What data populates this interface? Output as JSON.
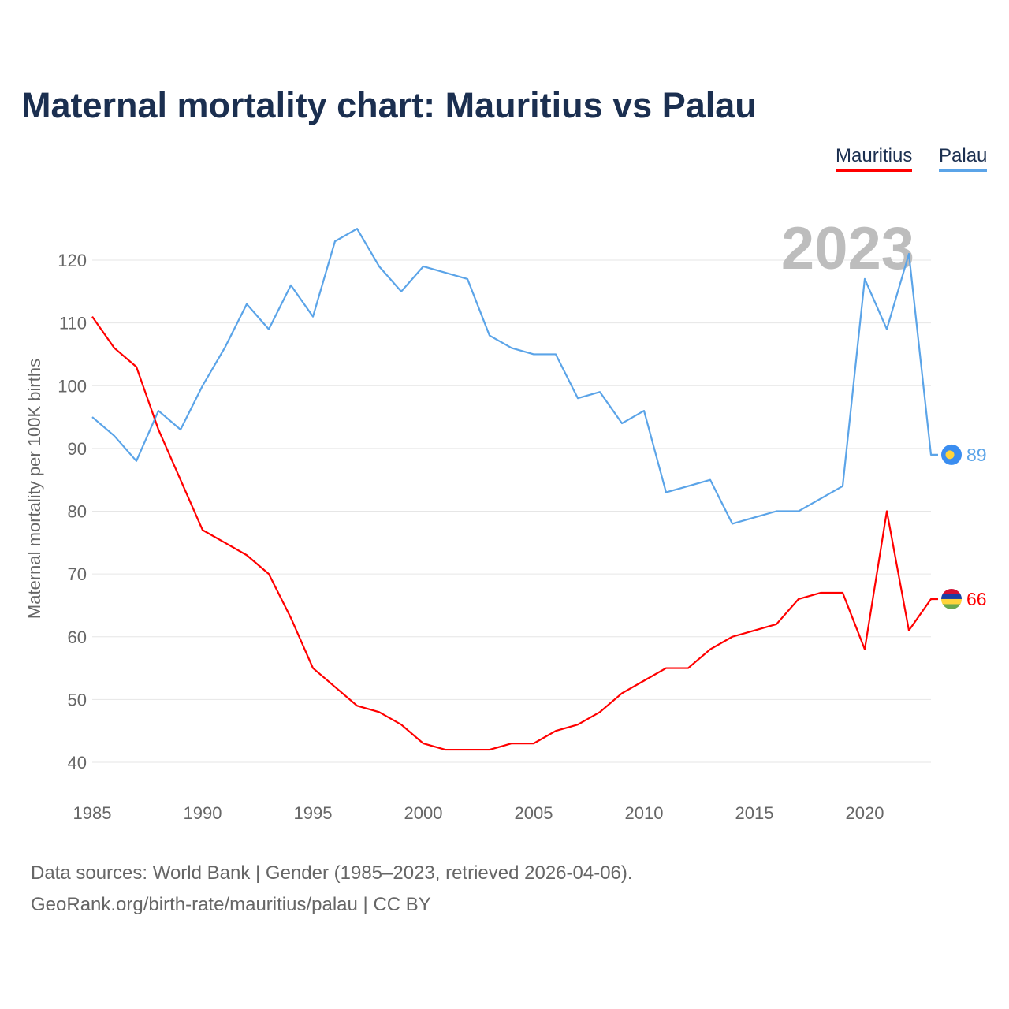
{
  "chart_data": {
    "type": "line",
    "title": "Maternal mortality chart: Mauritius vs Palau",
    "ylabel": "Maternal mortality per 100K births",
    "xlabel": "",
    "ylim": [
      40,
      120
    ],
    "xlim": [
      1985,
      2023
    ],
    "yticks": [
      40,
      50,
      60,
      70,
      80,
      90,
      100,
      110,
      120
    ],
    "xticks": [
      1985,
      1990,
      1995,
      2000,
      2005,
      2010,
      2015,
      2020
    ],
    "grid": true,
    "legend_position": "top-right",
    "year_watermark": "2023",
    "x": [
      1985,
      1986,
      1987,
      1988,
      1989,
      1990,
      1991,
      1992,
      1993,
      1994,
      1995,
      1996,
      1997,
      1998,
      1999,
      2000,
      2001,
      2002,
      2003,
      2004,
      2005,
      2006,
      2007,
      2008,
      2009,
      2010,
      2011,
      2012,
      2013,
      2014,
      2015,
      2016,
      2017,
      2018,
      2019,
      2020,
      2021,
      2022,
      2023
    ],
    "series": [
      {
        "name": "Mauritius",
        "color": "#ff0000",
        "end_label": "66",
        "values": [
          111,
          106,
          103,
          93,
          85,
          77,
          75,
          73,
          70,
          63,
          55,
          52,
          49,
          48,
          46,
          43,
          42,
          42,
          42,
          43,
          43,
          45,
          46,
          48,
          51,
          53,
          55,
          55,
          58,
          60,
          61,
          62,
          66,
          67,
          67,
          58,
          80,
          61,
          66
        ]
      },
      {
        "name": "Palau",
        "color": "#5ba4e8",
        "end_label": "89",
        "values": [
          95,
          92,
          88,
          96,
          93,
          100,
          106,
          113,
          109,
          116,
          111,
          123,
          125,
          119,
          115,
          119,
          118,
          117,
          108,
          106,
          105,
          105,
          98,
          99,
          94,
          96,
          83,
          84,
          85,
          78,
          79,
          80,
          80,
          82,
          84,
          117,
          109,
          121,
          89
        ]
      }
    ]
  },
  "footer": {
    "line1": "Data sources: World Bank | Gender (1985–2023, retrieved 2026-04-06).",
    "line2": "GeoRank.org/birth-rate/mauritius/palau | CC BY"
  }
}
